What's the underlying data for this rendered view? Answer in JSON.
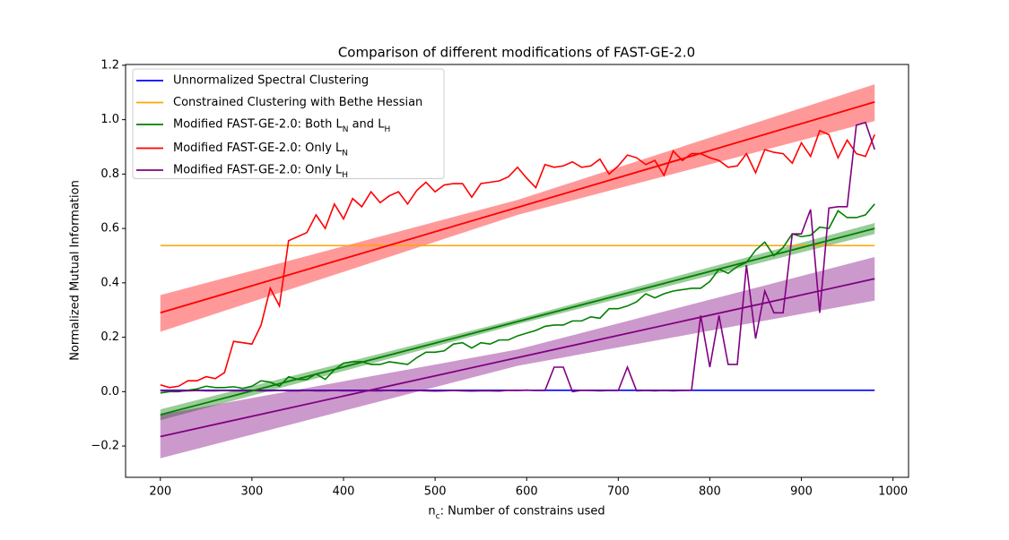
{
  "chart_data": {
    "type": "line",
    "title": "Comparison of different modifications of FAST-GE-2.0",
    "xlabel": "n_c: Number of constrains used",
    "ylabel": "Normalized Mutual Information",
    "xlim": [
      162,
      1017
    ],
    "ylim": [
      -0.315,
      1.203
    ],
    "xticks": [
      200,
      300,
      400,
      500,
      600,
      700,
      800,
      900,
      1000
    ],
    "yticks": [
      {
        "value": -0.2,
        "label": "−0.2"
      },
      {
        "value": 0,
        "label": "0.0"
      },
      0.2,
      0.4,
      0.6,
      0.8,
      {
        "value": 1,
        "label": "1.0"
      },
      1.2
    ],
    "legend": "upper-left",
    "x": [
      200,
      210,
      220,
      230,
      240,
      250,
      260,
      270,
      280,
      290,
      300,
      310,
      320,
      330,
      340,
      350,
      360,
      370,
      380,
      390,
      400,
      410,
      420,
      430,
      440,
      450,
      460,
      470,
      480,
      490,
      500,
      510,
      520,
      530,
      540,
      550,
      560,
      570,
      580,
      590,
      600,
      610,
      620,
      630,
      640,
      650,
      660,
      670,
      680,
      690,
      700,
      710,
      720,
      730,
      740,
      750,
      760,
      770,
      780,
      790,
      800,
      810,
      820,
      830,
      840,
      850,
      860,
      870,
      880,
      890,
      900,
      910,
      920,
      930,
      940,
      950,
      960,
      970,
      980
    ],
    "series": [
      {
        "name": "Unnormalized Spectral Clustering",
        "color": "#0000ff",
        "values": [
          0.005,
          0.005,
          0.005,
          0.005,
          0.005,
          0.005,
          0.005,
          0.005,
          0.005,
          0.005,
          0.005,
          0.005,
          0.005,
          0.005,
          0.005,
          0.005,
          0.005,
          0.005,
          0.005,
          0.005,
          0.005,
          0.005,
          0.005,
          0.005,
          0.005,
          0.005,
          0.005,
          0.005,
          0.005,
          0.005,
          0.005,
          0.005,
          0.005,
          0.005,
          0.005,
          0.005,
          0.005,
          0.005,
          0.005,
          0.005,
          0.005,
          0.005,
          0.005,
          0.005,
          0.005,
          0.005,
          0.005,
          0.005,
          0.005,
          0.005,
          0.005,
          0.005,
          0.005,
          0.005,
          0.005,
          0.005,
          0.005,
          0.005,
          0.005,
          0.005,
          0.005,
          0.005,
          0.005,
          0.005,
          0.005,
          0.005,
          0.005,
          0.005,
          0.005,
          0.005,
          0.005,
          0.005,
          0.005,
          0.005,
          0.005,
          0.005,
          0.005,
          0.005,
          0.005
        ]
      },
      {
        "name": "Constrained Clustering with Bethe Hessian",
        "color": "#ffa500",
        "values": [
          0.537,
          0.537,
          0.537,
          0.537,
          0.537,
          0.537,
          0.537,
          0.537,
          0.537,
          0.537,
          0.537,
          0.537,
          0.537,
          0.537,
          0.537,
          0.537,
          0.537,
          0.537,
          0.537,
          0.537,
          0.537,
          0.537,
          0.537,
          0.537,
          0.537,
          0.537,
          0.537,
          0.537,
          0.537,
          0.537,
          0.537,
          0.537,
          0.537,
          0.537,
          0.537,
          0.537,
          0.537,
          0.537,
          0.537,
          0.537,
          0.537,
          0.537,
          0.537,
          0.537,
          0.537,
          0.537,
          0.537,
          0.537,
          0.537,
          0.537,
          0.537,
          0.537,
          0.537,
          0.537,
          0.537,
          0.537,
          0.537,
          0.537,
          0.537,
          0.537,
          0.537,
          0.537,
          0.537,
          0.537,
          0.537,
          0.537,
          0.537,
          0.537,
          0.537,
          0.537,
          0.537,
          0.537,
          0.537,
          0.537,
          0.537,
          0.537,
          0.537,
          0.537,
          0.537
        ]
      },
      {
        "name": "Modified FAST-GE-2.0: Both L_N and L_H",
        "color": "#008000",
        "values": [
          -0.005,
          0.0,
          0.0,
          0.005,
          0.01,
          0.02,
          0.015,
          0.015,
          0.018,
          0.012,
          0.02,
          0.04,
          0.035,
          0.02,
          0.055,
          0.045,
          0.045,
          0.065,
          0.045,
          0.08,
          0.105,
          0.11,
          0.11,
          0.1,
          0.1,
          0.11,
          0.105,
          0.1,
          0.125,
          0.145,
          0.145,
          0.15,
          0.175,
          0.18,
          0.16,
          0.18,
          0.175,
          0.19,
          0.19,
          0.205,
          0.215,
          0.225,
          0.24,
          0.245,
          0.245,
          0.26,
          0.26,
          0.275,
          0.27,
          0.305,
          0.305,
          0.315,
          0.33,
          0.36,
          0.345,
          0.36,
          0.37,
          0.375,
          0.38,
          0.38,
          0.405,
          0.45,
          0.435,
          0.46,
          0.475,
          0.52,
          0.55,
          0.5,
          0.53,
          0.58,
          0.57,
          0.575,
          0.605,
          0.6,
          0.665,
          0.64,
          0.64,
          0.65,
          0.69
        ]
      },
      {
        "name": "Modified FAST-GE-2.0: Only L_N",
        "color": "#ff0000",
        "values": [
          0.025,
          0.015,
          0.02,
          0.04,
          0.04,
          0.055,
          0.048,
          0.07,
          0.185,
          0.18,
          0.175,
          0.245,
          0.38,
          0.315,
          0.555,
          0.57,
          0.585,
          0.65,
          0.6,
          0.69,
          0.635,
          0.71,
          0.68,
          0.735,
          0.695,
          0.72,
          0.735,
          0.69,
          0.74,
          0.77,
          0.735,
          0.76,
          0.765,
          0.765,
          0.715,
          0.765,
          0.77,
          0.775,
          0.79,
          0.825,
          0.785,
          0.75,
          0.835,
          0.825,
          0.83,
          0.845,
          0.825,
          0.83,
          0.855,
          0.8,
          0.83,
          0.87,
          0.86,
          0.835,
          0.85,
          0.795,
          0.885,
          0.85,
          0.875,
          0.875,
          0.86,
          0.85,
          0.825,
          0.83,
          0.875,
          0.805,
          0.89,
          0.88,
          0.875,
          0.84,
          0.915,
          0.865,
          0.96,
          0.945,
          0.86,
          0.925,
          0.875,
          0.865,
          0.945
        ]
      },
      {
        "name": "Modified FAST-GE-2.0: Only L_H",
        "color": "#800080",
        "values": [
          0.003,
          0.003,
          0.002,
          0.003,
          0.004,
          0.003,
          0.003,
          0.004,
          0.003,
          0.003,
          0.004,
          0.003,
          0.003,
          0.004,
          0.003,
          0.003,
          0.004,
          0.003,
          0.003,
          0.004,
          0.003,
          0.003,
          0.004,
          0.003,
          0.003,
          0.004,
          0.003,
          0.003,
          0.004,
          0.003,
          0.002,
          0.003,
          0.004,
          0.003,
          0.002,
          0.003,
          0.003,
          0.002,
          0.005,
          0.004,
          0.006,
          0.004,
          0.004,
          0.09,
          0.09,
          0.0,
          0.005,
          0.004,
          0.003,
          0.004,
          0.004,
          0.09,
          0.003,
          0.004,
          0.003,
          0.004,
          0.003,
          0.004,
          0.005,
          0.28,
          0.09,
          0.28,
          0.1,
          0.1,
          0.465,
          0.195,
          0.37,
          0.29,
          0.29,
          0.58,
          0.58,
          0.67,
          0.29,
          0.675,
          0.68,
          0.68,
          0.98,
          0.99,
          0.89
        ]
      }
    ],
    "fit_x": [
      200,
      590,
      980
    ],
    "fits": [
      {
        "color": "#ff0000",
        "values": [
          0.29,
          0.6775,
          1.065
        ],
        "lower": [
          0.22,
          0.65,
          0.995
        ],
        "upper": [
          0.355,
          0.705,
          1.13
        ]
      },
      {
        "color": "#008000",
        "values": [
          -0.085,
          0.2575,
          0.6
        ],
        "lower": [
          -0.105,
          0.2475,
          0.58
        ],
        "upper": [
          -0.065,
          0.2675,
          0.62
        ]
      },
      {
        "color": "#800080",
        "values": [
          -0.165,
          0.125,
          0.415
        ],
        "lower": [
          -0.245,
          0.095,
          0.335
        ],
        "upper": [
          -0.085,
          0.155,
          0.495
        ]
      }
    ]
  }
}
